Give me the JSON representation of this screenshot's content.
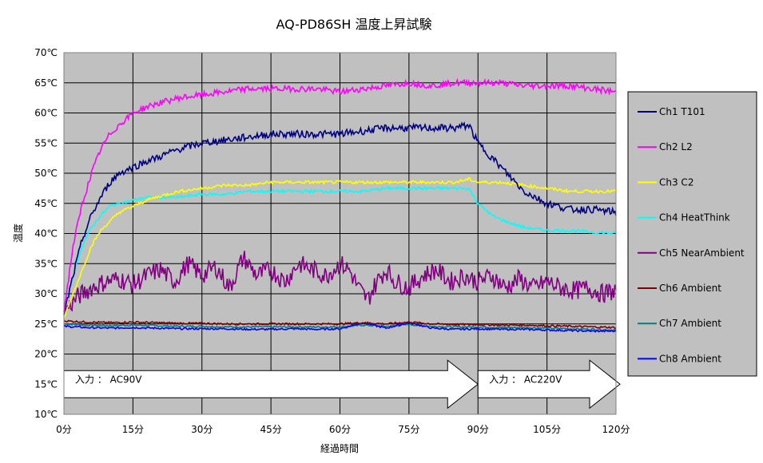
{
  "chart_data": {
    "type": "line",
    "title": "AQ-PD86SH  温度上昇試験",
    "xlabel": "経過時間",
    "ylabel": "温度",
    "xlim": [
      0,
      120
    ],
    "ylim": [
      10,
      70
    ],
    "x_ticks": [
      0,
      15,
      30,
      45,
      60,
      75,
      90,
      105,
      120
    ],
    "x_tick_labels": [
      "0分",
      "15分",
      "30分",
      "45分",
      "60分",
      "75分",
      "90分",
      "105分",
      "120分"
    ],
    "y_ticks": [
      10,
      15,
      20,
      25,
      30,
      35,
      40,
      45,
      50,
      55,
      60,
      65,
      70
    ],
    "y_tick_labels": [
      "10℃",
      "15℃",
      "20℃",
      "25℃",
      "30℃",
      "35℃",
      "40℃",
      "45℃",
      "50℃",
      "55℃",
      "60℃",
      "65℃",
      "70℃"
    ],
    "grid": true,
    "legend_position": "right",
    "plot_background": "#c0c0c0",
    "series": [
      {
        "name": "Ch1  T101",
        "color": "#000080",
        "x": [
          0,
          2,
          4,
          6,
          8,
          10,
          12,
          15,
          18,
          20,
          25,
          30,
          35,
          40,
          45,
          50,
          55,
          60,
          65,
          70,
          75,
          80,
          85,
          88,
          90,
          95,
          100,
          105,
          110,
          115,
          120
        ],
        "y": [
          26.5,
          33,
          39,
          43,
          46,
          48.5,
          50,
          51,
          52,
          52.5,
          54,
          55,
          55.5,
          56,
          56.5,
          56.5,
          56.5,
          56.5,
          57,
          57.5,
          57.5,
          57.5,
          57.5,
          58,
          55,
          51,
          47,
          45,
          44,
          44,
          43.5
        ]
      },
      {
        "name": "Ch2  L2",
        "color": "#ff00ff",
        "x": [
          0,
          2,
          4,
          6,
          8,
          10,
          12,
          15,
          18,
          20,
          25,
          30,
          35,
          40,
          45,
          50,
          55,
          60,
          65,
          70,
          75,
          80,
          85,
          90,
          95,
          100,
          105,
          110,
          115,
          120
        ],
        "y": [
          27,
          38,
          45,
          50,
          54,
          56.5,
          58,
          60,
          61,
          61.5,
          62.5,
          63,
          63.5,
          64,
          64,
          64,
          64,
          63.5,
          64,
          64.5,
          65,
          64.5,
          65,
          65,
          65,
          64.5,
          64.5,
          64.5,
          64,
          63.5
        ]
      },
      {
        "name": "Ch3  C2",
        "color": "#ffff00",
        "x": [
          0,
          2,
          4,
          6,
          8,
          10,
          12,
          15,
          18,
          20,
          25,
          30,
          35,
          40,
          45,
          50,
          55,
          60,
          65,
          70,
          75,
          80,
          85,
          88,
          90,
          95,
          100,
          105,
          110,
          115,
          120
        ],
        "y": [
          26,
          30,
          34,
          38,
          40.5,
          42,
          43.5,
          44.5,
          45.5,
          46,
          47,
          47.5,
          48,
          48,
          48.5,
          48.5,
          48.5,
          48.5,
          48.5,
          48.5,
          48.5,
          48.5,
          48.5,
          49,
          48.5,
          48.5,
          48,
          47.5,
          47,
          47,
          47
        ]
      },
      {
        "name": "Ch4  HeatThink",
        "color": "#00ffff",
        "x": [
          0,
          2,
          4,
          6,
          8,
          10,
          12,
          15,
          18,
          20,
          25,
          30,
          35,
          40,
          45,
          50,
          55,
          60,
          65,
          70,
          75,
          80,
          85,
          88,
          90,
          93,
          96,
          100,
          105,
          110,
          115,
          120
        ],
        "y": [
          27,
          33,
          38,
          41,
          43,
          44.5,
          45,
          45.5,
          46,
          46,
          46,
          46.5,
          46.5,
          47,
          47,
          47,
          47,
          47,
          47,
          47.5,
          47.5,
          47.5,
          47.5,
          47.5,
          45,
          43,
          42,
          41,
          40.5,
          40.5,
          40.2,
          40
        ]
      },
      {
        "name": "Ch5  NearAmbient",
        "color": "#800080",
        "x": [
          0,
          3,
          6,
          9,
          12,
          15,
          18,
          21,
          24,
          27,
          30,
          33,
          36,
          39,
          42,
          45,
          48,
          51,
          54,
          57,
          60,
          62,
          64,
          66,
          68,
          70,
          72,
          75,
          78,
          81,
          84,
          87,
          90,
          93,
          96,
          99,
          102,
          105,
          108,
          111,
          114,
          117,
          120
        ],
        "y": [
          27,
          29.5,
          31,
          32,
          32.5,
          31.5,
          33,
          34,
          32,
          35,
          33,
          34.5,
          31,
          36,
          33,
          34,
          32,
          35,
          34,
          33,
          35,
          34,
          31,
          29,
          32,
          34,
          32,
          31,
          33,
          34,
          32,
          33,
          32,
          33,
          31,
          32.5,
          31,
          32,
          31,
          30.5,
          31,
          30,
          30.5
        ]
      },
      {
        "name": "Ch6  Ambient",
        "color": "#800000",
        "x": [
          0,
          5,
          10,
          15,
          20,
          25,
          30,
          35,
          40,
          45,
          50,
          55,
          60,
          65,
          70,
          75,
          80,
          85,
          90,
          95,
          100,
          105,
          110,
          115,
          120
        ],
        "y": [
          25.5,
          25.3,
          25.2,
          25.3,
          25.2,
          25.1,
          25.1,
          25,
          25,
          25,
          25,
          25,
          25,
          25.2,
          25,
          25.3,
          25,
          24.9,
          24.9,
          24.8,
          24.8,
          24.7,
          24.6,
          24.5,
          24.4
        ]
      },
      {
        "name": "Ch7  Ambient",
        "color": "#008080",
        "x": [
          0,
          5,
          10,
          15,
          20,
          25,
          30,
          35,
          40,
          45,
          50,
          55,
          60,
          65,
          70,
          75,
          80,
          85,
          90,
          95,
          100,
          105,
          110,
          115,
          120
        ],
        "y": [
          25,
          24.8,
          24.7,
          24.8,
          24.7,
          24.6,
          24.6,
          24.5,
          24.5,
          24.5,
          24.5,
          24.5,
          24.5,
          24.8,
          24.6,
          24.9,
          24.6,
          24.5,
          24.5,
          24.4,
          24.4,
          24.3,
          24.2,
          24.1,
          24
        ]
      },
      {
        "name": "Ch8  Ambient",
        "color": "#0000ff",
        "x": [
          0,
          5,
          10,
          15,
          20,
          25,
          30,
          35,
          40,
          45,
          50,
          55,
          60,
          65,
          70,
          75,
          80,
          85,
          90,
          95,
          100,
          105,
          110,
          115,
          120
        ],
        "y": [
          24.6,
          24.4,
          24.3,
          24.4,
          24.3,
          24.2,
          24.2,
          24.2,
          24.1,
          24.1,
          24.2,
          24.1,
          24.2,
          25.2,
          24.3,
          25.2,
          24.3,
          24.1,
          24.2,
          24.1,
          24.1,
          24,
          23.9,
          23.8,
          23.8
        ]
      }
    ],
    "annotations": [
      {
        "label": "入力 ： AC90V",
        "x_start": 0,
        "x_end": 90,
        "y": 15
      },
      {
        "label": "入力 ： AC220V",
        "x_start": 90,
        "x_end": 120,
        "y": 15
      }
    ]
  }
}
